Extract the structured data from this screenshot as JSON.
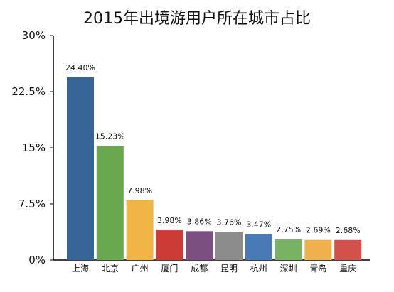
{
  "chart_data": {
    "type": "bar",
    "title": "2015年出境游用户所在城市占比",
    "categories": [
      "上海",
      "北京",
      "广州",
      "厦门",
      "成都",
      "昆明",
      "杭州",
      "深圳",
      "青岛",
      "重庆"
    ],
    "values": [
      24.4,
      15.23,
      7.98,
      3.98,
      3.86,
      3.76,
      3.47,
      2.75,
      2.69,
      2.68
    ],
    "value_labels": [
      "24.40%",
      "15.23%",
      "7.98%",
      "3.98%",
      "3.86%",
      "3.76%",
      "3.47%",
      "2.75%",
      "2.69%",
      "2.68%"
    ],
    "colors": [
      "#376597",
      "#6aa84f",
      "#f0b545",
      "#cc3b35",
      "#7b5080",
      "#8c8c8c",
      "#4a7ab5",
      "#78b365",
      "#eeb14c",
      "#d4504a"
    ],
    "yticks": [
      0,
      7.5,
      15,
      22.5,
      30
    ],
    "ytick_labels": [
      "0%",
      "7.5%",
      "15%",
      "22.5%",
      "30%"
    ],
    "ylim": [
      0,
      30
    ],
    "grid": false,
    "legend": "none"
  }
}
